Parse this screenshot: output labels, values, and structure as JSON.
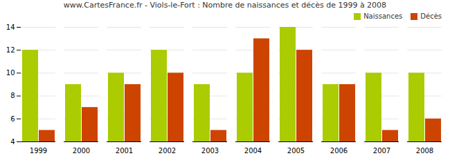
{
  "chart_data": {
    "type": "bar",
    "title": "www.CartesFrance.fr - Viols-le-Fort : Nombre de naissances et décès de 1999 à 2008",
    "categories": [
      "1999",
      "2000",
      "2001",
      "2002",
      "2003",
      "2004",
      "2005",
      "2006",
      "2007",
      "2008"
    ],
    "series": [
      {
        "name": "Naissances",
        "color": "#AACC00",
        "values": [
          12,
          9,
          10,
          12,
          9,
          10,
          14,
          9,
          10,
          10
        ]
      },
      {
        "name": "Décès",
        "color": "#CC4400",
        "values": [
          5,
          7,
          9,
          10,
          5,
          13,
          12,
          9,
          5,
          6
        ]
      }
    ],
    "ylim": [
      4,
      14
    ],
    "yticks": [
      4,
      6,
      8,
      10,
      12,
      14
    ],
    "grid": true,
    "legend": "upper right"
  }
}
